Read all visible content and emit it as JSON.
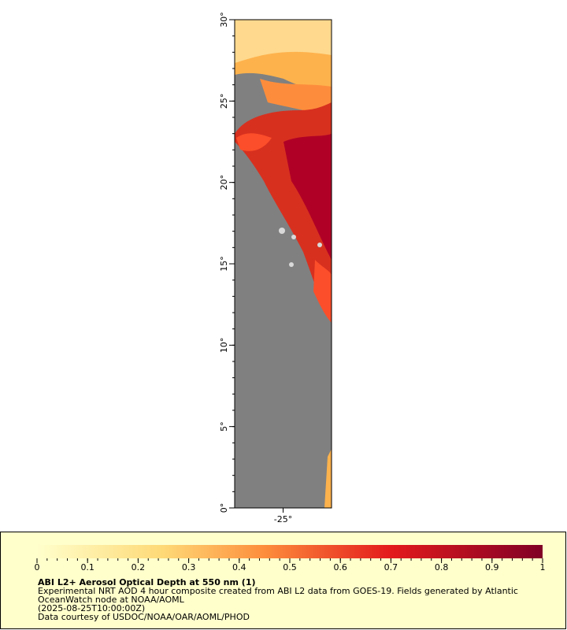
{
  "map": {
    "lat_range": [
      0,
      30
    ],
    "lon_range": [
      -28,
      -22
    ],
    "lat_ticks": [
      {
        "value": 0,
        "label": "0°"
      },
      {
        "value": 5,
        "label": "5°"
      },
      {
        "value": 10,
        "label": "10°"
      },
      {
        "value": 15,
        "label": "15°"
      },
      {
        "value": 20,
        "label": "20°"
      },
      {
        "value": 25,
        "label": "25°"
      },
      {
        "value": 30,
        "label": "30°"
      }
    ],
    "lon_ticks": [
      {
        "value": -25,
        "label": "-25°"
      }
    ]
  },
  "colorbar": {
    "range": [
      0,
      1
    ],
    "ticks": [
      0,
      0.1,
      0.2,
      0.3,
      0.4,
      0.5,
      0.6,
      0.7,
      0.8,
      0.9,
      1
    ]
  },
  "caption": {
    "title": "ABI L2+ Aerosol Optical Depth at 550 nm (1)",
    "lines": [
      "Experimental NRT AOD 4 hour composite created from ABI L2 data from GOES-19. Fields generated by Atlantic",
      "OceanWatch node at NOAA/AOML",
      "(2025-08-25T10:00:00Z)",
      "Data courtesy of USDOC/NOAA/OAR/AOML/PHOD"
    ]
  }
}
